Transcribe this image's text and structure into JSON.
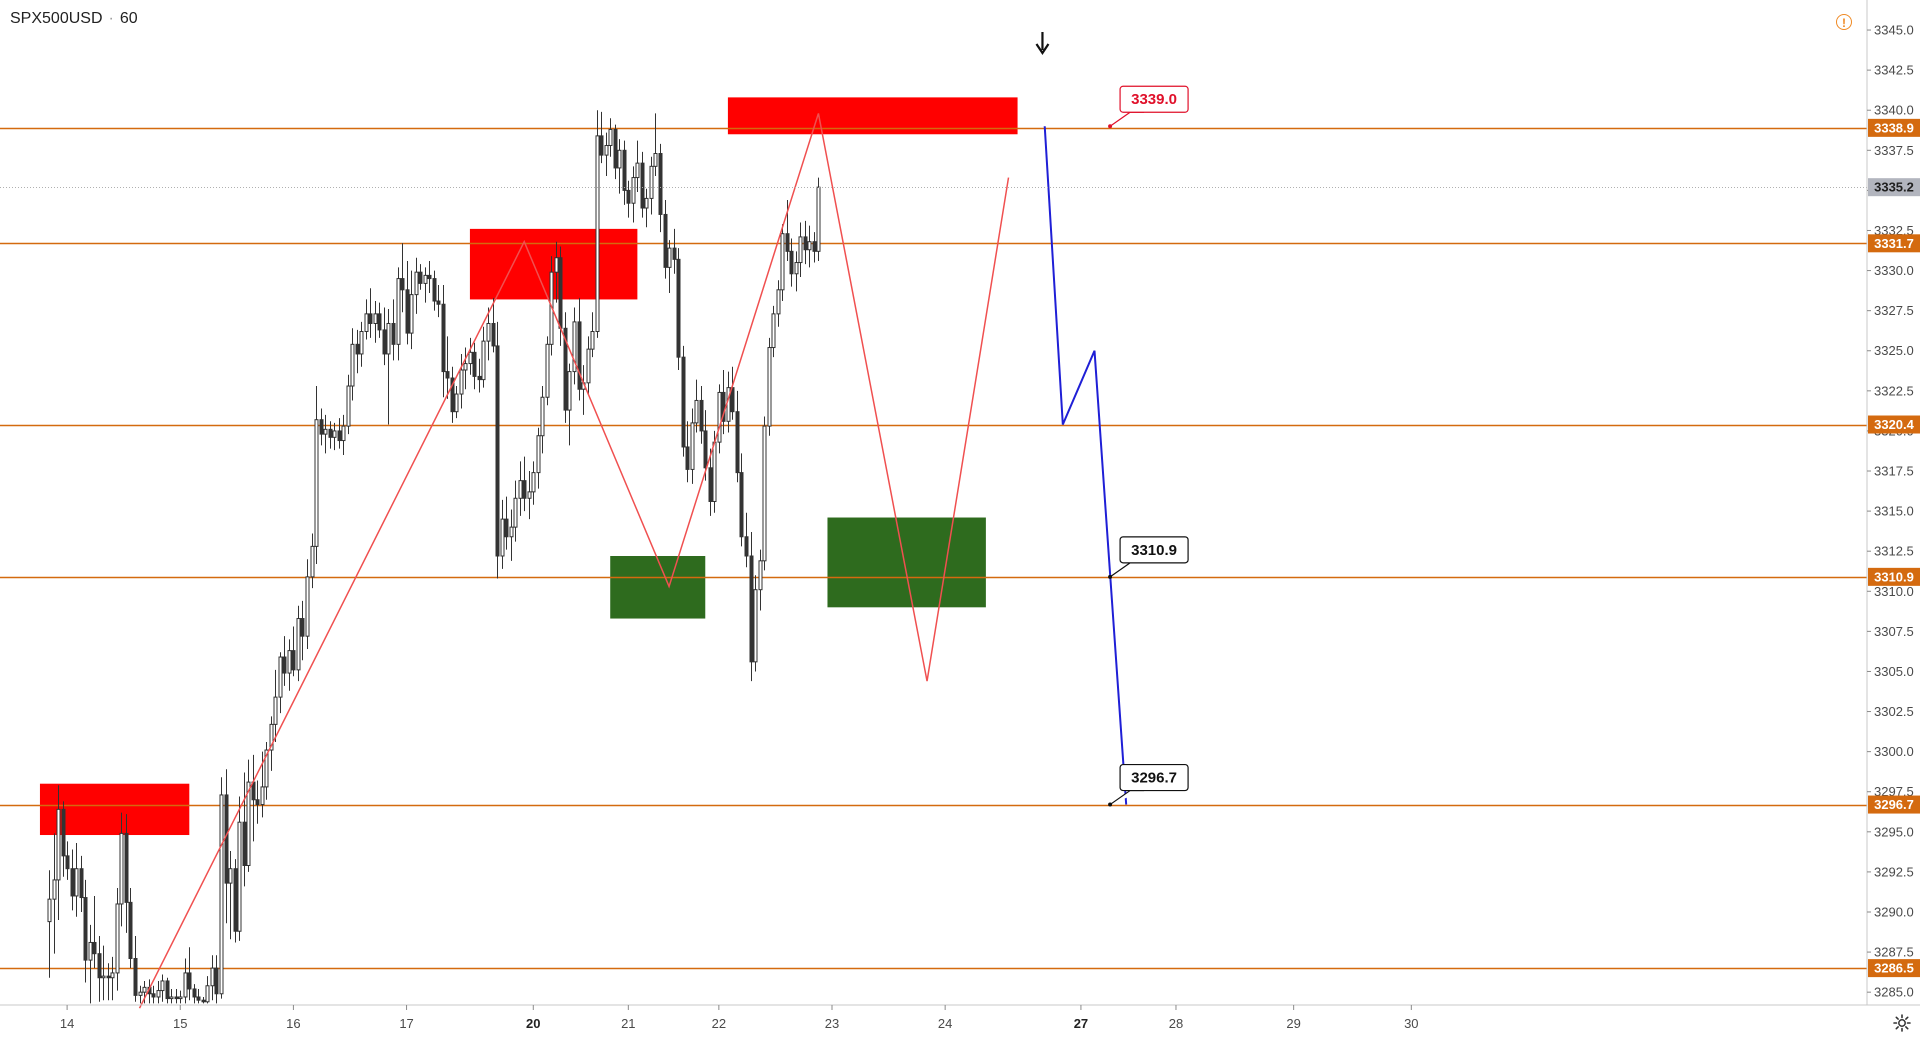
{
  "header": {
    "symbol": "SPX500USD",
    "interval": "60",
    "separator": "·"
  },
  "icons": {
    "warning": "warning-circle-icon",
    "settings": "gear-icon",
    "arrow": "arrow-down-icon"
  },
  "colors": {
    "level_line": "#d46a0f",
    "supply_zone": "#ff0000",
    "demand_zone": "#2e6b1e",
    "zigzag": "#f05050",
    "projection": "#1f1fd6",
    "candle": "#333333",
    "current_price_badge": "#b2b5be",
    "callout_red": "#e0102a"
  },
  "chart_data": {
    "type": "candlestick",
    "instrument": "SPX500USD",
    "timeframe": "60",
    "y_range": [
      3284.2,
      3346.0
    ],
    "y_ticks": [
      "3345.0",
      "3342.5",
      "3340.0",
      "3337.5",
      "3335.0",
      "3332.5",
      "3330.0",
      "3327.5",
      "3325.0",
      "3322.5",
      "3320.0",
      "3317.5",
      "3315.0",
      "3312.5",
      "3310.0",
      "3307.5",
      "3305.0",
      "3302.5",
      "3300.0",
      "3297.5",
      "3295.0",
      "3292.5",
      "3290.0",
      "3287.5",
      "3285.0"
    ],
    "x_ticks": [
      {
        "label": "14",
        "bar": 4,
        "bold": false
      },
      {
        "label": "15",
        "bar": 29,
        "bold": false
      },
      {
        "label": "16",
        "bar": 54,
        "bold": false
      },
      {
        "label": "17",
        "bar": 79,
        "bold": false
      },
      {
        "label": "20",
        "bar": 107,
        "bold": true
      },
      {
        "label": "21",
        "bar": 128,
        "bold": false
      },
      {
        "label": "22",
        "bar": 148,
        "bold": false
      },
      {
        "label": "23",
        "bar": 173,
        "bold": false
      },
      {
        "label": "24",
        "bar": 198,
        "bold": false
      },
      {
        "label": "27",
        "bar": 228,
        "bold": true
      },
      {
        "label": "28",
        "bar": 249,
        "bold": false
      },
      {
        "label": "29",
        "bar": 275,
        "bold": false
      },
      {
        "label": "30",
        "bar": 301,
        "bold": false
      }
    ],
    "horizontal_levels": [
      {
        "value": 3338.9,
        "label": "3338.9"
      },
      {
        "value": 3331.7,
        "label": "3331.7"
      },
      {
        "value": 3320.4,
        "label": "3320.4"
      },
      {
        "value": 3310.9,
        "label": "3310.9"
      },
      {
        "value": 3296.7,
        "label": "3296.7"
      },
      {
        "value": 3286.5,
        "label": "3286.5"
      }
    ],
    "current_price": {
      "value": 3335.2,
      "label": "3335.2"
    },
    "callouts": [
      {
        "label": "3339.0",
        "value": 3339.0,
        "bar": 234,
        "style": "red"
      },
      {
        "label": "3310.9",
        "value": 3310.9,
        "bar": 234,
        "style": "dark"
      },
      {
        "label": "3296.7",
        "value": 3296.7,
        "bar": 234,
        "style": "dark"
      }
    ],
    "zones": [
      {
        "kind": "supply",
        "bar_start": -2,
        "bar_end": 31,
        "top": 3298.0,
        "bottom": 3294.8
      },
      {
        "kind": "supply",
        "bar_start": 93,
        "bar_end": 130,
        "top": 3332.6,
        "bottom": 3328.2
      },
      {
        "kind": "supply",
        "bar_start": 150,
        "bar_end": 214,
        "top": 3340.8,
        "bottom": 3338.5
      },
      {
        "kind": "demand",
        "bar_start": 124,
        "bar_end": 145,
        "top": 3312.2,
        "bottom": 3308.3
      },
      {
        "kind": "demand",
        "bar_start": 172,
        "bar_end": 207,
        "top": 3314.6,
        "bottom": 3309.0
      }
    ],
    "zigzag": [
      {
        "bar": 20,
        "value": 3284.0
      },
      {
        "bar": 105,
        "value": 3331.8
      },
      {
        "bar": 137,
        "value": 3310.3
      },
      {
        "bar": 170,
        "value": 3339.8
      },
      {
        "bar": 194,
        "value": 3304.4
      },
      {
        "bar": 212,
        "value": 3335.8
      }
    ],
    "projection": [
      {
        "bar": 220,
        "value": 3339.0
      },
      {
        "bar": 224,
        "value": 3320.4
      },
      {
        "bar": 231,
        "value": 3325.0
      },
      {
        "bar": 238,
        "value": 3296.7
      }
    ],
    "marker": {
      "kind": "arrow-down",
      "bar": 219.5
    },
    "candles": [
      [
        3289.4,
        3292.6,
        3285.9,
        3290.8
      ],
      [
        3290.8,
        3294.9,
        3287.4,
        3292.0
      ],
      [
        3292.0,
        3297.9,
        3289.5,
        3296.4
      ],
      [
        3296.4,
        3296.9,
        3292.2,
        3293.5
      ],
      [
        3293.5,
        3294.4,
        3292.0,
        3292.7
      ],
      [
        3292.7,
        3293.9,
        3290.1,
        3291.0
      ],
      [
        3291.0,
        3294.3,
        3289.7,
        3292.7
      ],
      [
        3292.7,
        3293.5,
        3290.0,
        3290.9
      ],
      [
        3290.9,
        3292.0,
        3285.6,
        3287.0
      ],
      [
        3287.0,
        3289.2,
        3284.3,
        3288.1
      ],
      [
        3288.1,
        3291.0,
        3286.5,
        3287.4
      ],
      [
        3287.4,
        3288.5,
        3284.4,
        3285.9
      ],
      [
        3285.9,
        3287.9,
        3284.5,
        3286.0
      ],
      [
        3286.0,
        3286.8,
        3284.5,
        3285.9
      ],
      [
        3285.9,
        3287.2,
        3284.5,
        3286.2
      ],
      [
        3286.2,
        3291.5,
        3285.1,
        3290.5
      ],
      [
        3290.5,
        3296.2,
        3289.1,
        3294.9
      ],
      [
        3294.9,
        3296.1,
        3288.7,
        3290.6
      ],
      [
        3290.6,
        3291.5,
        3286.5,
        3287.1
      ],
      [
        3287.1,
        3288.5,
        3284.4,
        3284.8
      ],
      [
        3284.8,
        3285.4,
        3284.3,
        3285.0
      ],
      [
        3285.0,
        3285.7,
        3284.3,
        3285.3
      ],
      [
        3285.3,
        3285.8,
        3284.3,
        3284.9
      ],
      [
        3284.9,
        3285.4,
        3284.3,
        3284.7
      ],
      [
        3284.7,
        3285.7,
        3284.3,
        3285.1
      ],
      [
        3285.1,
        3286.1,
        3284.4,
        3285.7
      ],
      [
        3285.7,
        3285.9,
        3284.3,
        3284.6
      ],
      [
        3284.6,
        3285.2,
        3284.3,
        3284.7
      ],
      [
        3284.7,
        3285.2,
        3284.3,
        3284.6
      ],
      [
        3284.6,
        3285.1,
        3284.3,
        3284.7
      ],
      [
        3284.7,
        3287.1,
        3284.3,
        3286.2
      ],
      [
        3286.2,
        3287.8,
        3284.5,
        3285.2
      ],
      [
        3285.2,
        3285.5,
        3284.3,
        3284.7
      ],
      [
        3284.7,
        3285.2,
        3284.3,
        3284.5
      ],
      [
        3284.5,
        3284.7,
        3284.3,
        3284.4
      ],
      [
        3284.4,
        3286.0,
        3284.3,
        3285.4
      ],
      [
        3285.4,
        3287.3,
        3284.5,
        3286.5
      ],
      [
        3286.5,
        3287.3,
        3284.3,
        3284.9
      ],
      [
        3284.9,
        3298.4,
        3284.6,
        3297.3
      ],
      [
        3297.3,
        3298.9,
        3289.3,
        3291.8
      ],
      [
        3291.8,
        3293.8,
        3288.3,
        3292.7
      ],
      [
        3292.7,
        3293.3,
        3288.1,
        3288.8
      ],
      [
        3288.8,
        3297.2,
        3288.2,
        3295.6
      ],
      [
        3295.6,
        3298.7,
        3291.6,
        3292.9
      ],
      [
        3292.9,
        3299.5,
        3292.5,
        3298.1
      ],
      [
        3298.1,
        3299.8,
        3294.4,
        3297.0
      ],
      [
        3297.0,
        3298.2,
        3295.5,
        3296.7
      ],
      [
        3296.7,
        3300.0,
        3295.9,
        3297.8
      ],
      [
        3297.8,
        3300.6,
        3297.0,
        3300.1
      ],
      [
        3300.1,
        3302.2,
        3298.8,
        3301.7
      ],
      [
        3301.7,
        3305.1,
        3300.6,
        3303.4
      ],
      [
        3303.4,
        3306.2,
        3302.4,
        3305.9
      ],
      [
        3305.9,
        3307.2,
        3304.1,
        3304.9
      ],
      [
        3304.9,
        3307.0,
        3303.8,
        3306.3
      ],
      [
        3306.3,
        3307.8,
        3304.7,
        3305.1
      ],
      [
        3305.1,
        3309.1,
        3304.4,
        3308.3
      ],
      [
        3308.3,
        3309.4,
        3305.7,
        3307.2
      ],
      [
        3307.2,
        3312.0,
        3306.4,
        3310.9
      ],
      [
        3310.9,
        3313.6,
        3310.2,
        3312.8
      ],
      [
        3312.8,
        3322.8,
        3311.7,
        3320.7
      ],
      [
        3320.7,
        3321.4,
        3319.1,
        3319.8
      ],
      [
        3319.8,
        3321.0,
        3318.6,
        3320.1
      ],
      [
        3320.1,
        3320.6,
        3318.9,
        3319.6
      ],
      [
        3319.6,
        3320.5,
        3318.8,
        3320.0
      ],
      [
        3320.0,
        3320.8,
        3318.9,
        3319.4
      ],
      [
        3319.4,
        3321.0,
        3318.5,
        3320.3
      ],
      [
        3320.3,
        3323.5,
        3319.8,
        3322.8
      ],
      [
        3322.8,
        3326.4,
        3321.9,
        3325.4
      ],
      [
        3325.4,
        3326.3,
        3323.6,
        3324.8
      ],
      [
        3324.8,
        3326.8,
        3324.0,
        3326.2
      ],
      [
        3326.2,
        3328.2,
        3325.7,
        3327.3
      ],
      [
        3327.3,
        3328.9,
        3325.8,
        3326.7
      ],
      [
        3326.7,
        3328.1,
        3325.5,
        3327.3
      ],
      [
        3327.3,
        3328.0,
        3325.8,
        3326.3
      ],
      [
        3326.3,
        3327.7,
        3324.1,
        3324.8
      ],
      [
        3324.8,
        3327.6,
        3320.4,
        3326.7
      ],
      [
        3326.7,
        3328.2,
        3324.4,
        3325.4
      ],
      [
        3325.4,
        3330.2,
        3324.4,
        3329.5
      ],
      [
        3329.5,
        3331.7,
        3327.4,
        3328.8
      ],
      [
        3328.8,
        3330.6,
        3325.4,
        3326.1
      ],
      [
        3326.1,
        3330.0,
        3325.1,
        3328.5
      ],
      [
        3328.5,
        3330.8,
        3327.3,
        3329.9
      ],
      [
        3329.9,
        3330.4,
        3328.8,
        3329.2
      ],
      [
        3329.2,
        3330.2,
        3328.0,
        3329.7
      ],
      [
        3329.7,
        3330.6,
        3328.6,
        3329.5
      ],
      [
        3329.5,
        3330.0,
        3327.5,
        3328.1
      ],
      [
        3328.1,
        3329.1,
        3327.1,
        3327.9
      ],
      [
        3327.9,
        3329.1,
        3322.1,
        3323.7
      ],
      [
        3323.7,
        3325.9,
        3322.0,
        3323.3
      ],
      [
        3323.3,
        3324.0,
        3320.5,
        3321.2
      ],
      [
        3321.2,
        3322.8,
        3320.8,
        3322.3
      ],
      [
        3322.3,
        3324.8,
        3321.4,
        3323.8
      ],
      [
        3323.8,
        3325.2,
        3322.6,
        3324.2
      ],
      [
        3324.2,
        3325.8,
        3323.5,
        3324.9
      ],
      [
        3324.9,
        3325.5,
        3322.6,
        3323.4
      ],
      [
        3323.4,
        3324.5,
        3322.4,
        3323.2
      ],
      [
        3323.2,
        3326.5,
        3322.7,
        3325.6
      ],
      [
        3325.6,
        3327.7,
        3324.4,
        3326.7
      ],
      [
        3326.7,
        3328.3,
        3324.9,
        3325.3
      ],
      [
        3325.3,
        3326.8,
        3310.8,
        3312.2
      ],
      [
        3312.2,
        3315.7,
        3311.4,
        3314.5
      ],
      [
        3314.5,
        3315.9,
        3312.6,
        3313.4
      ],
      [
        3313.4,
        3315.1,
        3311.9,
        3314.0
      ],
      [
        3314.0,
        3316.9,
        3313.1,
        3315.8
      ],
      [
        3315.8,
        3318.1,
        3314.7,
        3316.9
      ],
      [
        3316.9,
        3318.4,
        3315.0,
        3315.8
      ],
      [
        3315.8,
        3317.5,
        3314.5,
        3316.2
      ],
      [
        3316.2,
        3318.1,
        3315.4,
        3317.4
      ],
      [
        3317.4,
        3320.2,
        3316.4,
        3319.7
      ],
      [
        3319.7,
        3322.8,
        3318.6,
        3322.1
      ],
      [
        3322.1,
        3325.9,
        3321.6,
        3325.4
      ],
      [
        3325.4,
        3330.9,
        3324.7,
        3329.9
      ],
      [
        3329.9,
        3331.8,
        3328.0,
        3330.8
      ],
      [
        3330.8,
        3331.5,
        3325.3,
        3326.4
      ],
      [
        3326.4,
        3327.4,
        3320.5,
        3321.3
      ],
      [
        3321.3,
        3324.2,
        3319.1,
        3323.7
      ],
      [
        3323.7,
        3327.7,
        3322.9,
        3326.8
      ],
      [
        3326.8,
        3328.3,
        3321.9,
        3322.6
      ],
      [
        3322.6,
        3324.1,
        3321.0,
        3323.0
      ],
      [
        3323.0,
        3325.9,
        3322.3,
        3325.1
      ],
      [
        3325.1,
        3327.4,
        3324.6,
        3326.2
      ],
      [
        3326.2,
        3340.0,
        3325.8,
        3338.4
      ],
      [
        3338.4,
        3339.9,
        3336.7,
        3337.2
      ],
      [
        3337.2,
        3338.6,
        3335.9,
        3337.8
      ],
      [
        3337.8,
        3339.5,
        3337.1,
        3338.8
      ],
      [
        3338.8,
        3339.1,
        3335.7,
        3336.4
      ],
      [
        3336.4,
        3338.2,
        3334.8,
        3337.5
      ],
      [
        3337.5,
        3338.1,
        3334.1,
        3335.0
      ],
      [
        3335.0,
        3335.6,
        3333.3,
        3334.2
      ],
      [
        3334.2,
        3336.5,
        3333.0,
        3335.8
      ],
      [
        3335.8,
        3338.1,
        3334.9,
        3336.7
      ],
      [
        3336.7,
        3337.4,
        3333.3,
        3333.9
      ],
      [
        3333.9,
        3335.1,
        3332.7,
        3334.5
      ],
      [
        3334.5,
        3337.1,
        3333.5,
        3336.5
      ],
      [
        3336.5,
        3339.8,
        3335.9,
        3337.3
      ],
      [
        3337.3,
        3337.9,
        3332.4,
        3333.5
      ],
      [
        3333.5,
        3334.4,
        3329.5,
        3330.2
      ],
      [
        3330.2,
        3331.9,
        3328.6,
        3331.4
      ],
      [
        3331.4,
        3332.6,
        3329.8,
        3330.7
      ],
      [
        3330.7,
        3331.4,
        3323.8,
        3324.6
      ],
      [
        3324.6,
        3325.3,
        3318.4,
        3319.0
      ],
      [
        3319.0,
        3320.6,
        3316.8,
        3317.6
      ],
      [
        3317.6,
        3321.4,
        3316.7,
        3320.5
      ],
      [
        3320.5,
        3323.2,
        3319.9,
        3321.9
      ],
      [
        3321.9,
        3322.8,
        3319.2,
        3320.0
      ],
      [
        3320.0,
        3321.3,
        3316.9,
        3317.7
      ],
      [
        3317.7,
        3318.9,
        3314.7,
        3315.6
      ],
      [
        3315.6,
        3320.0,
        3314.9,
        3319.3
      ],
      [
        3319.3,
        3322.9,
        3318.6,
        3322.4
      ],
      [
        3322.4,
        3323.8,
        3319.8,
        3320.6
      ],
      [
        3320.6,
        3323.7,
        3319.9,
        3322.7
      ],
      [
        3322.7,
        3324.0,
        3320.7,
        3321.2
      ],
      [
        3321.2,
        3322.5,
        3316.8,
        3317.4
      ],
      [
        3317.4,
        3318.6,
        3312.8,
        3313.4
      ],
      [
        3313.4,
        3314.9,
        3311.5,
        3312.2
      ],
      [
        3312.2,
        3313.7,
        3304.4,
        3305.6
      ],
      [
        3305.6,
        3311.0,
        3305.0,
        3310.1
      ],
      [
        3310.1,
        3312.6,
        3308.8,
        3311.9
      ],
      [
        3311.9,
        3320.9,
        3311.3,
        3320.3
      ],
      [
        3320.3,
        3325.8,
        3319.7,
        3325.2
      ],
      [
        3325.2,
        3327.8,
        3324.6,
        3327.3
      ],
      [
        3327.3,
        3329.4,
        3326.5,
        3328.8
      ],
      [
        3328.8,
        3332.9,
        3328.1,
        3332.3
      ],
      [
        3332.3,
        3334.4,
        3330.6,
        3331.2
      ],
      [
        3331.2,
        3332.0,
        3329.0,
        3329.8
      ],
      [
        3329.8,
        3331.2,
        3328.7,
        3330.5
      ],
      [
        3330.5,
        3333.0,
        3329.6,
        3332.1
      ],
      [
        3332.1,
        3333.1,
        3330.4,
        3331.3
      ],
      [
        3331.3,
        3332.8,
        3330.2,
        3331.8
      ],
      [
        3331.8,
        3332.4,
        3330.5,
        3331.2
      ],
      [
        3331.2,
        3335.8,
        3330.6,
        3335.2
      ]
    ]
  }
}
